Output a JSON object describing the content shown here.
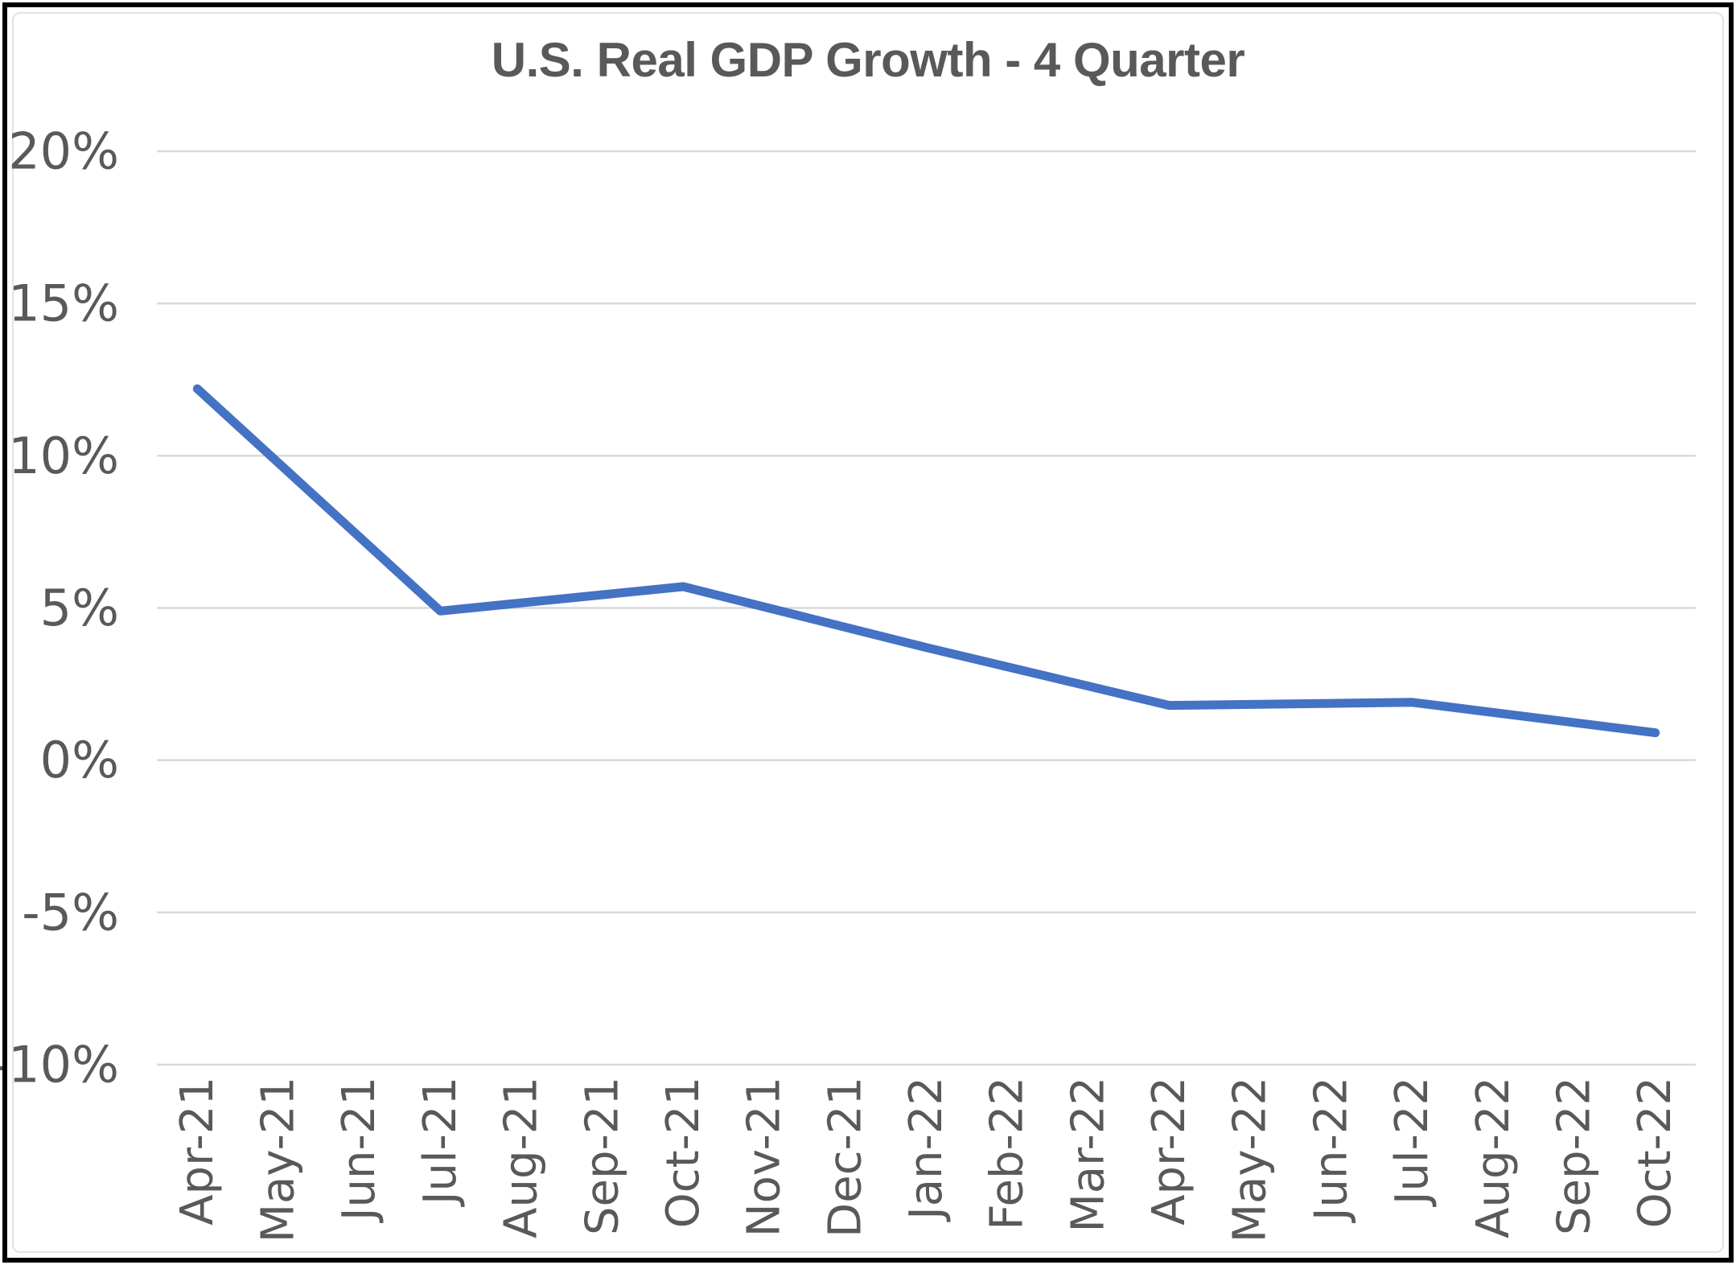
{
  "window": {
    "title": "U.S. Real GDP Growth - 4 Quarter"
  },
  "colors": {
    "line": "#4472C4",
    "gridline": "#D9D9D9",
    "tick_text": "#595959",
    "title_text": "#595959",
    "background": "#FFFFFF",
    "outer_border": "#000000",
    "chart_frame": "#E2E2E2"
  },
  "chart_data": {
    "type": "line",
    "title": "U.S. Real GDP Growth - 4 Quarter",
    "xlabel": "",
    "ylabel": "",
    "grid": true,
    "legend": false,
    "ylim": [
      -10,
      20
    ],
    "y_ticks": [
      {
        "label": "20%",
        "value": 20
      },
      {
        "label": "15%",
        "value": 15
      },
      {
        "label": "10%",
        "value": 10
      },
      {
        "label": "5%",
        "value": 5
      },
      {
        "label": "0%",
        "value": 0
      },
      {
        "label": "-5%",
        "value": -5
      },
      {
        "label": "-10%",
        "value": -10
      }
    ],
    "categories": [
      "Apr-21",
      "May-21",
      "Jun-21",
      "Jul-21",
      "Aug-21",
      "Sep-21",
      "Oct-21",
      "Nov-21",
      "Dec-21",
      "Jan-22",
      "Feb-22",
      "Mar-22",
      "Apr-22",
      "May-22",
      "Jun-22",
      "Jul-22",
      "Aug-22",
      "Sep-22",
      "Oct-22"
    ],
    "series": [
      {
        "name": "U.S. Real GDP Growth - 4 Quarter",
        "points": [
          {
            "category": "Apr-21",
            "value": 12.2
          },
          {
            "category": "Jul-21",
            "value": 4.9
          },
          {
            "category": "Oct-21",
            "value": 5.7
          },
          {
            "category": "Jan-22",
            "value": 3.7
          },
          {
            "category": "Apr-22",
            "value": 1.8
          },
          {
            "category": "Jul-22",
            "value": 1.9
          },
          {
            "category": "Oct-22",
            "value": 0.9
          }
        ]
      }
    ],
    "line_width": 11
  }
}
